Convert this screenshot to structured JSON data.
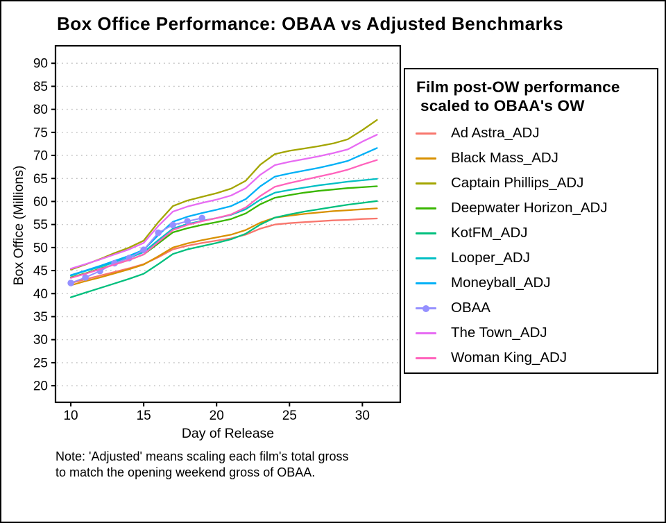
{
  "chart_data": {
    "type": "line",
    "title": "Box Office Performance: OBAA vs Adjusted Benchmarks",
    "xlabel": "Day of Release",
    "ylabel": "Box Office (Millions)",
    "x_ticks": [
      10,
      15,
      20,
      25,
      30
    ],
    "y_ticks": [
      20,
      25,
      30,
      35,
      40,
      45,
      50,
      55,
      60,
      65,
      70,
      75,
      80,
      85,
      90
    ],
    "xlim": [
      8.95,
      32.6
    ],
    "ylim": [
      16.4,
      93.8
    ],
    "grid": "horizontal-dotted",
    "legend_position": "right",
    "series": [
      {
        "name": "Ad Astra_ADJ",
        "color": "#F8766D",
        "marker": false,
        "x": [
          10,
          11,
          12,
          13,
          14,
          15,
          16,
          17,
          18,
          19,
          20,
          21,
          22,
          23,
          24,
          25,
          26,
          27,
          28,
          29,
          30,
          31
        ],
        "values": [
          42.3,
          43.1,
          43.9,
          44.7,
          45.5,
          46.4,
          47.9,
          49.6,
          50.4,
          51.0,
          51.5,
          52.0,
          52.8,
          54.1,
          55.0,
          55.3,
          55.5,
          55.7,
          55.9,
          56.0,
          56.2,
          56.3
        ]
      },
      {
        "name": "Black Mass_ADJ",
        "color": "#D89000",
        "marker": false,
        "x": [
          10,
          11,
          12,
          13,
          14,
          15,
          16,
          17,
          18,
          19,
          20,
          21,
          22,
          23,
          24,
          25,
          26,
          27,
          28,
          29,
          30,
          31
        ],
        "values": [
          41.8,
          42.7,
          43.5,
          44.4,
          45.3,
          46.3,
          48.1,
          50.0,
          50.9,
          51.6,
          52.2,
          52.8,
          53.8,
          55.4,
          56.5,
          56.9,
          57.3,
          57.6,
          57.9,
          58.1,
          58.3,
          58.5
        ]
      },
      {
        "name": "Captain Phillips_ADJ",
        "color": "#A3A500",
        "marker": false,
        "x": [
          10,
          11,
          12,
          13,
          14,
          15,
          16,
          17,
          18,
          19,
          20,
          21,
          22,
          23,
          24,
          25,
          26,
          27,
          28,
          29,
          30,
          31
        ],
        "values": [
          45.2,
          46.3,
          47.5,
          48.8,
          50.0,
          51.5,
          55.5,
          59.0,
          60.2,
          61.0,
          61.8,
          62.8,
          64.5,
          68.0,
          70.3,
          71.0,
          71.5,
          72.0,
          72.6,
          73.5,
          75.5,
          77.7
        ]
      },
      {
        "name": "Deepwater Horizon_ADJ",
        "color": "#39B600",
        "marker": false,
        "x": [
          10,
          11,
          12,
          13,
          14,
          15,
          16,
          17,
          18,
          19,
          20,
          21,
          22,
          23,
          24,
          25,
          26,
          27,
          28,
          29,
          30,
          31
        ],
        "values": [
          43.5,
          44.4,
          45.4,
          46.3,
          47.3,
          48.5,
          50.9,
          53.3,
          54.2,
          54.9,
          55.5,
          56.2,
          57.4,
          59.4,
          60.8,
          61.4,
          61.9,
          62.3,
          62.6,
          62.9,
          63.1,
          63.3
        ]
      },
      {
        "name": "KotFM_ADJ",
        "color": "#00BF7D",
        "marker": false,
        "x": [
          10,
          11,
          12,
          13,
          14,
          15,
          16,
          17,
          18,
          19,
          20,
          21,
          22,
          23,
          24,
          25,
          26,
          27,
          28,
          29,
          30,
          31
        ],
        "values": [
          39.2,
          40.2,
          41.2,
          42.2,
          43.2,
          44.3,
          46.4,
          48.6,
          49.6,
          50.3,
          51.0,
          51.8,
          53.0,
          55.0,
          56.5,
          57.2,
          57.8,
          58.3,
          58.8,
          59.3,
          59.7,
          60.1
        ]
      },
      {
        "name": "Looper_ADJ",
        "color": "#00BFC4",
        "marker": false,
        "x": [
          10,
          11,
          12,
          13,
          14,
          15,
          16,
          17,
          18,
          19,
          20,
          21,
          22,
          23,
          24,
          25,
          26,
          27,
          28,
          29,
          30,
          31
        ],
        "values": [
          43.9,
          44.9,
          45.8,
          46.8,
          47.8,
          49.0,
          51.6,
          54.1,
          55.1,
          55.8,
          56.4,
          57.1,
          58.3,
          60.4,
          61.9,
          62.5,
          63.0,
          63.5,
          63.9,
          64.3,
          64.6,
          64.9
        ]
      },
      {
        "name": "Moneyball_ADJ",
        "color": "#00B0F6",
        "marker": false,
        "x": [
          10,
          11,
          12,
          13,
          14,
          15,
          16,
          17,
          18,
          19,
          20,
          21,
          22,
          23,
          24,
          25,
          26,
          27,
          28,
          29,
          30,
          31
        ],
        "values": [
          44.0,
          45.0,
          46.0,
          47.1,
          48.2,
          49.5,
          52.7,
          55.6,
          56.7,
          57.5,
          58.2,
          59.0,
          60.5,
          63.3,
          65.4,
          66.1,
          66.7,
          67.3,
          68.0,
          68.8,
          70.2,
          71.6
        ]
      },
      {
        "name": "OBAA",
        "color": "#9590FF",
        "marker": true,
        "x": [
          10,
          11,
          12,
          13,
          14,
          15,
          16,
          17,
          18,
          19
        ],
        "values": [
          42.3,
          43.5,
          44.9,
          46.6,
          47.7,
          49.5,
          53.2,
          54.9,
          55.7,
          56.4
        ]
      },
      {
        "name": "The Town_ADJ",
        "color": "#E76BF3",
        "marker": false,
        "x": [
          10,
          11,
          12,
          13,
          14,
          15,
          16,
          17,
          18,
          19,
          20,
          21,
          22,
          23,
          24,
          25,
          26,
          27,
          28,
          29,
          30,
          31
        ],
        "values": [
          45.4,
          46.4,
          47.4,
          48.5,
          49.6,
          51.0,
          54.7,
          57.8,
          58.9,
          59.7,
          60.4,
          61.3,
          62.9,
          65.8,
          67.9,
          68.6,
          69.2,
          69.8,
          70.5,
          71.3,
          73.0,
          74.5
        ]
      },
      {
        "name": "Woman King_ADJ",
        "color": "#FF62BC",
        "marker": false,
        "x": [
          10,
          11,
          12,
          13,
          14,
          15,
          16,
          17,
          18,
          19,
          20,
          21,
          22,
          23,
          24,
          25,
          26,
          27,
          28,
          29,
          30,
          31
        ],
        "values": [
          43.4,
          44.3,
          45.3,
          46.3,
          47.3,
          48.5,
          51.2,
          53.8,
          54.9,
          55.7,
          56.4,
          57.2,
          58.7,
          61.2,
          63.2,
          64.0,
          64.7,
          65.4,
          66.1,
          66.9,
          68.0,
          69.0
        ]
      }
    ]
  },
  "legend": {
    "title_line1": "Film post-OW performance",
    "title_line2": "scaled to OBAA's OW",
    "items": [
      {
        "label": "Ad Astra_ADJ",
        "color": "#F8766D",
        "marker": false
      },
      {
        "label": "Black Mass_ADJ",
        "color": "#D89000",
        "marker": false
      },
      {
        "label": "Captain Phillips_ADJ",
        "color": "#A3A500",
        "marker": false
      },
      {
        "label": "Deepwater Horizon_ADJ",
        "color": "#39B600",
        "marker": false
      },
      {
        "label": "KotFM_ADJ",
        "color": "#00BF7D",
        "marker": false
      },
      {
        "label": "Looper_ADJ",
        "color": "#00BFC4",
        "marker": false
      },
      {
        "label": "Moneyball_ADJ",
        "color": "#00B0F6",
        "marker": false
      },
      {
        "label": "OBAA",
        "color": "#9590FF",
        "marker": true
      },
      {
        "label": "The Town_ADJ",
        "color": "#E76BF3",
        "marker": false
      },
      {
        "label": "Woman King_ADJ",
        "color": "#FF62BC",
        "marker": false
      }
    ]
  },
  "note": {
    "line1": "Note: 'Adjusted' means scaling each film's total gross",
    "line2": "to match the opening weekend gross of OBAA."
  }
}
